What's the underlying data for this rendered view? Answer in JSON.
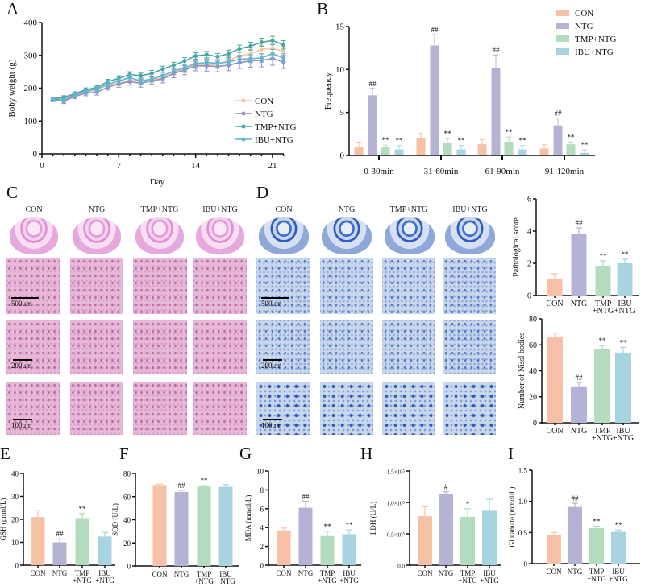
{
  "panel_letters": [
    "A",
    "B",
    "C",
    "D",
    "E",
    "F",
    "G",
    "H",
    "I"
  ],
  "colors": {
    "CON": "#f6c1a7",
    "NTG": "#b4b2d5",
    "TMP": "#b3dbbd",
    "IBU": "#a8d3e1",
    "line_CON": "#f5c7a4",
    "line_NTG": "#948fc4",
    "line_TMP": "#45a6a3",
    "line_IBU": "#62b5cd"
  },
  "panel_c": {
    "columns": [
      "CON",
      "NTG",
      "TMP+NTG",
      "IBU+NTG"
    ],
    "scale_bars": [
      "500μm",
      "200μm",
      "100μm"
    ]
  },
  "panel_d": {
    "columns": [
      "CON",
      "NTG",
      "TMP+NTG",
      "IBU+NTG"
    ],
    "scale_bars": [
      "500μm",
      "200μm",
      "100μm"
    ]
  },
  "chart_data": [
    {
      "id": "A",
      "type": "line",
      "xlabel": "Day",
      "ylabel": "Boby weight (g)",
      "xlim": [
        0,
        22
      ],
      "ylim": [
        0,
        400
      ],
      "xticks": [
        0,
        7,
        14,
        21
      ],
      "yticks": [
        0,
        100,
        200,
        300,
        400
      ],
      "legend": "center-right",
      "x": [
        1,
        2,
        3,
        4,
        5,
        6,
        7,
        8,
        9,
        10,
        11,
        12,
        13,
        14,
        15,
        16,
        17,
        18,
        19,
        20,
        21,
        22
      ],
      "series": [
        {
          "name": "CON",
          "key": "CON",
          "marker": "diamond",
          "values": [
            165,
            170,
            178,
            188,
            195,
            210,
            215,
            225,
            220,
            225,
            232,
            248,
            258,
            270,
            272,
            272,
            285,
            298,
            305,
            318,
            322,
            312
          ],
          "err": [
            5,
            6,
            6,
            7,
            7,
            8,
            8,
            9,
            9,
            9,
            10,
            10,
            11,
            11,
            12,
            12,
            12,
            12,
            13,
            13,
            13,
            13
          ]
        },
        {
          "name": "NTG",
          "key": "NTG",
          "marker": "square",
          "values": [
            165,
            160,
            175,
            185,
            188,
            203,
            213,
            220,
            215,
            223,
            228,
            245,
            255,
            268,
            268,
            266,
            270,
            278,
            283,
            285,
            290,
            280
          ],
          "err": [
            6,
            7,
            7,
            8,
            9,
            9,
            10,
            11,
            12,
            11,
            12,
            13,
            14,
            15,
            16,
            16,
            17,
            18,
            19,
            20,
            20,
            20
          ]
        },
        {
          "name": "TMP+NTG",
          "key": "TMP",
          "marker": "triangle-up",
          "values": [
            168,
            172,
            183,
            195,
            202,
            220,
            230,
            242,
            238,
            245,
            258,
            270,
            283,
            298,
            302,
            296,
            305,
            320,
            328,
            340,
            345,
            332
          ],
          "err": [
            5,
            5,
            6,
            6,
            7,
            7,
            8,
            8,
            8,
            9,
            9,
            9,
            10,
            10,
            10,
            10,
            11,
            11,
            12,
            12,
            13,
            13
          ]
        },
        {
          "name": "IBU+NTG",
          "key": "IBU",
          "marker": "triangle-down",
          "values": [
            168,
            163,
            180,
            190,
            198,
            212,
            222,
            232,
            222,
            228,
            238,
            252,
            262,
            275,
            278,
            276,
            280,
            288,
            290,
            292,
            305,
            292
          ],
          "err": [
            5,
            6,
            6,
            7,
            7,
            8,
            8,
            9,
            9,
            9,
            10,
            10,
            10,
            11,
            11,
            11,
            12,
            12,
            12,
            13,
            13,
            13
          ]
        }
      ]
    },
    {
      "id": "B",
      "type": "bar",
      "ylabel": "Frequency",
      "ylim": [
        0,
        15
      ],
      "yticks": [
        0,
        5,
        10,
        15
      ],
      "legend": "top-right",
      "categories": [
        "0-30min",
        "31-60min",
        "61-90min",
        "91-120min"
      ],
      "series": [
        {
          "name": "CON",
          "key": "CON",
          "values": [
            1.0,
            2.0,
            1.3,
            0.8
          ],
          "err": [
            0.55,
            0.55,
            0.55,
            0.45
          ],
          "marks": [
            "",
            "",
            "",
            ""
          ]
        },
        {
          "name": "NTG",
          "key": "NTG",
          "values": [
            7.0,
            12.8,
            10.2,
            3.5
          ],
          "err": [
            0.8,
            1.25,
            1.5,
            0.85
          ],
          "marks": [
            "##",
            "##",
            "##",
            "##"
          ]
        },
        {
          "name": "TMP+NTG",
          "key": "TMP",
          "values": [
            1.0,
            1.5,
            1.6,
            1.3
          ],
          "err": [
            0.2,
            0.45,
            0.55,
            0.25
          ],
          "marks": [
            "**",
            "**",
            "**",
            "**"
          ]
        },
        {
          "name": "IBU+NTG",
          "key": "IBU",
          "values": [
            0.7,
            0.7,
            0.7,
            0.3
          ],
          "err": [
            0.45,
            0.45,
            0.45,
            0.35
          ],
          "marks": [
            "**",
            "**",
            "**",
            "**"
          ]
        }
      ]
    },
    {
      "id": "D-score",
      "type": "bar",
      "ylabel": "Pathological score",
      "ylim": [
        0,
        6
      ],
      "yticks": [
        0,
        2,
        4,
        6
      ],
      "yticklabels": [
        "0",
        "2",
        "4",
        "6"
      ],
      "categories": [
        [
          "CON"
        ],
        [
          "NTG"
        ],
        [
          "TMP",
          "+NTG"
        ],
        [
          "IBU",
          "+NTG"
        ]
      ],
      "values": [
        1.0,
        3.85,
        1.85,
        2.0
      ],
      "err": [
        0.35,
        0.35,
        0.3,
        0.25
      ],
      "marks": [
        "",
        "##",
        "**",
        "**"
      ]
    },
    {
      "id": "D-nissl",
      "type": "bar",
      "ylabel": "Number of Nissl bodies",
      "ylim": [
        0,
        80
      ],
      "yticks": [
        0,
        20,
        40,
        60,
        80
      ],
      "yticklabels": [
        "0",
        "20",
        "40",
        "60",
        "80"
      ],
      "categories": [
        [
          "CON"
        ],
        [
          "NTG"
        ],
        [
          "TMP",
          "+NTG"
        ],
        [
          "IBU",
          "+NTG"
        ]
      ],
      "values": [
        66,
        28,
        57,
        54
      ],
      "err": [
        3,
        3,
        2.5,
        4
      ],
      "marks": [
        "",
        "##",
        "**",
        "**"
      ]
    },
    {
      "id": "E",
      "type": "bar",
      "ylabel": "GSH (μmol/L)",
      "ylim": [
        0,
        40
      ],
      "yticks": [
        0,
        10,
        20,
        30,
        40
      ],
      "yticklabels": [
        "0",
        "10",
        "20",
        "30",
        "40"
      ],
      "categories": [
        [
          "CON"
        ],
        [
          "NTG"
        ],
        [
          "TMP",
          "+NTG"
        ],
        [
          "IBU",
          "+NTG"
        ]
      ],
      "values": [
        21,
        10,
        20.5,
        12.5
      ],
      "err": [
        2.8,
        1.5,
        2,
        1.8
      ],
      "marks": [
        "",
        "##",
        "**",
        ""
      ]
    },
    {
      "id": "F",
      "type": "bar",
      "ylabel": "SOD (U/L)",
      "ylim": [
        0,
        80
      ],
      "yticks": [
        0,
        20,
        40,
        60,
        80
      ],
      "yticklabels": [
        "0",
        "20",
        "40",
        "60",
        "80"
      ],
      "categories": [
        [
          "CON"
        ],
        [
          "NTG"
        ],
        [
          "TMP",
          "+NTG"
        ],
        [
          "IBU",
          "+NTG"
        ]
      ],
      "values": [
        70,
        64,
        69,
        68.5
      ],
      "err": [
        0.8,
        1.5,
        0.5,
        2
      ],
      "marks": [
        "",
        "##",
        "**",
        ""
      ]
    },
    {
      "id": "G",
      "type": "bar",
      "ylabel": "MDA (mmol/L)",
      "ylim": [
        0,
        10
      ],
      "yticks": [
        0,
        2,
        4,
        6,
        8,
        10
      ],
      "yticklabels": [
        "0",
        "2",
        "4",
        "6",
        "8",
        "10"
      ],
      "categories": [
        [
          "CON"
        ],
        [
          "NTG"
        ],
        [
          "TMP",
          "+NTG"
        ],
        [
          "IBU",
          "+NTG"
        ]
      ],
      "values": [
        3.7,
        6.1,
        3.1,
        3.3
      ],
      "err": [
        0.25,
        0.7,
        0.5,
        0.45
      ],
      "marks": [
        "",
        "##",
        "**",
        "**"
      ]
    },
    {
      "id": "H",
      "type": "bar",
      "ylabel": "LDH (U/L)",
      "ylim": [
        0,
        150000
      ],
      "yticks": [
        0,
        50000,
        100000,
        150000
      ],
      "yticklabels": [
        "0.0",
        "0.5×10⁵",
        "1.0×10⁵",
        "1.5×10⁵"
      ],
      "categories": [
        [
          "CON"
        ],
        [
          "NTG"
        ],
        [
          "TMP",
          "+NTG"
        ],
        [
          "IBU",
          "+NTG"
        ]
      ],
      "values": [
        78000,
        114000,
        77000,
        88000
      ],
      "err": [
        15000,
        3000,
        13000,
        17000
      ],
      "marks": [
        "",
        "#",
        "*",
        ""
      ]
    },
    {
      "id": "I",
      "type": "bar",
      "ylabel": "Glutamate (mmol/L)",
      "ylim": [
        0,
        1.5
      ],
      "yticks": [
        0,
        0.5,
        1.0,
        1.5
      ],
      "yticklabels": [
        "0",
        "0.5",
        "1.0",
        "1.5"
      ],
      "categories": [
        [
          "CON"
        ],
        [
          "NTG"
        ],
        [
          "TMP",
          "+NTG"
        ],
        [
          "IBU",
          "+NTG"
        ]
      ],
      "values": [
        0.46,
        0.91,
        0.57,
        0.51
      ],
      "err": [
        0.04,
        0.06,
        0.03,
        0.03
      ],
      "marks": [
        "",
        "##",
        "**",
        "**"
      ]
    }
  ]
}
